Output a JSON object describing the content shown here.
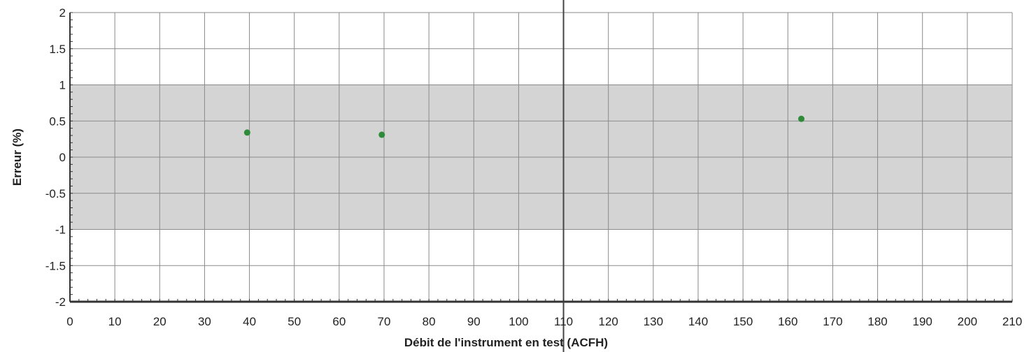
{
  "chart_data": {
    "type": "scatter",
    "title": "",
    "xlabel": "Débit de l'instrument en test (ACFH)",
    "ylabel": "Erreur (%)",
    "xlim": [
      0,
      210
    ],
    "ylim": [
      -2,
      2
    ],
    "x_ticks": [
      "0",
      "10",
      "20",
      "30",
      "40",
      "50",
      "60",
      "70",
      "80",
      "90",
      "100",
      "110",
      "120",
      "130",
      "140",
      "150",
      "160",
      "170",
      "180",
      "190",
      "200",
      "210"
    ],
    "y_ticks": [
      "2",
      "1.5",
      "1",
      "0.5",
      "0",
      "-0.5",
      "-1",
      "-1.5",
      "-2"
    ],
    "grid": true,
    "tolerance_band": {
      "ymin": -1,
      "ymax": 1,
      "color": "#d4d4d4"
    },
    "series": [
      {
        "color": "#2e8b3a",
        "points": [
          {
            "x": 39.5,
            "y": 0.34
          },
          {
            "x": 69.5,
            "y": 0.31
          },
          {
            "x": 163,
            "y": 0.53
          }
        ]
      }
    ]
  }
}
